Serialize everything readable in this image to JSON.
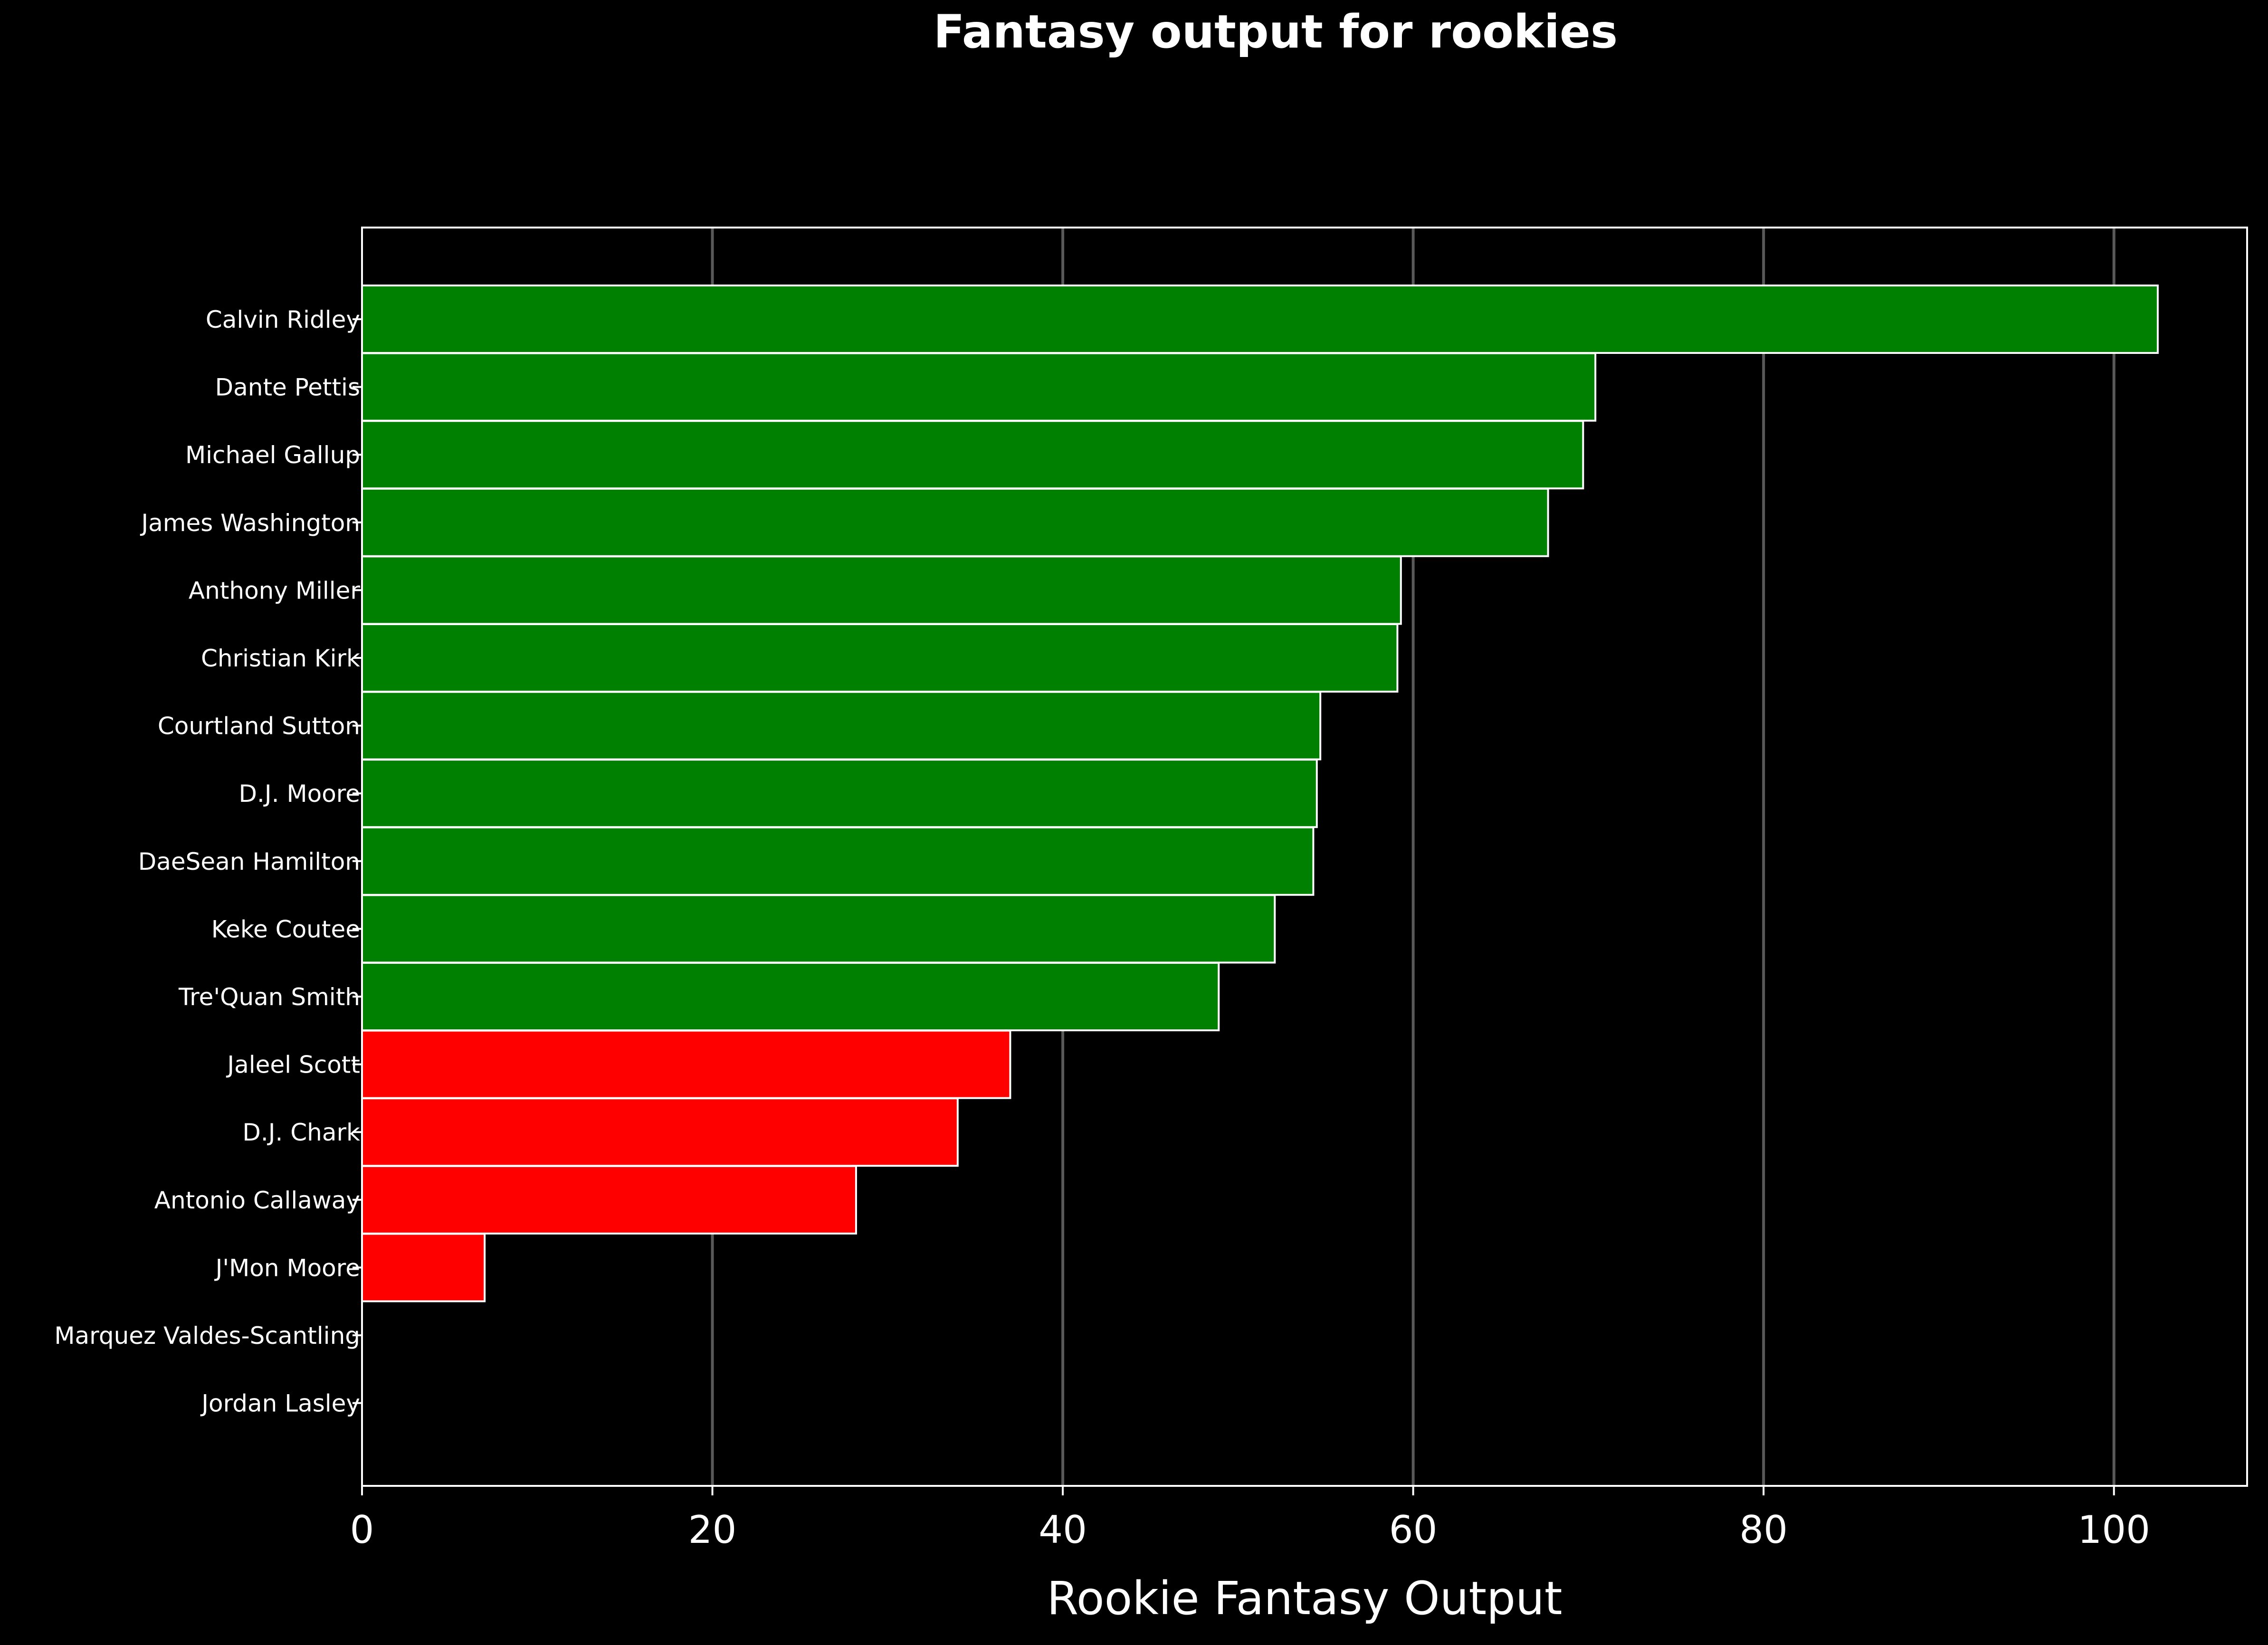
{
  "chart_data": {
    "type": "bar",
    "orientation": "horizontal",
    "title": "Fantasy output for rookies",
    "xlabel": "Rookie Fantasy Output",
    "ylabel": "",
    "xlim": [
      0,
      107.6
    ],
    "xticks": [
      0,
      20,
      40,
      60,
      80,
      100
    ],
    "grid": "vertical",
    "categories": [
      "Calvin Ridley",
      "Dante Pettis",
      "Michael Gallup",
      "James Washington",
      "Anthony Miller",
      "Christian Kirk",
      "Courtland Sutton",
      "D.J. Moore",
      "DaeSean Hamilton",
      "Keke Coutee",
      "Tre'Quan Smith",
      "Jaleel Scott",
      "D.J. Chark",
      "Antonio Callaway",
      "J'Mon Moore",
      "Marquez Valdes-Scantling",
      "Jordan Lasley"
    ],
    "values": [
      102.5,
      70.4,
      69.7,
      67.7,
      59.3,
      59.1,
      54.7,
      54.5,
      54.3,
      52.1,
      48.9,
      37.0,
      34.0,
      28.2,
      7.0,
      0,
      0
    ],
    "colors": [
      "#008000",
      "#008000",
      "#008000",
      "#008000",
      "#008000",
      "#008000",
      "#008000",
      "#008000",
      "#008000",
      "#008000",
      "#008000",
      "#ff0000",
      "#ff0000",
      "#ff0000",
      "#ff0000",
      "#ff0000",
      "#ff0000"
    ]
  }
}
